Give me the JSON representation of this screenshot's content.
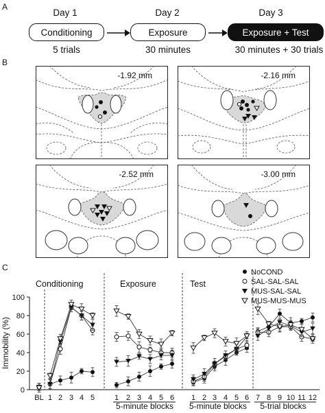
{
  "panel_a": {
    "letter": "A",
    "steps": [
      {
        "day": "Day 1",
        "label": "Conditioning",
        "detail": "5 trials"
      },
      {
        "day": "Day 2",
        "label": "Exposure",
        "detail": "30 minutes"
      },
      {
        "day": "Day 3",
        "label": "Exposure + Test",
        "detail": "30 minutes + 30 trials"
      }
    ]
  },
  "panel_b": {
    "letter": "B",
    "sections": [
      {
        "label": "-1.92 mm",
        "dots": 3,
        "open_dots": 1,
        "triangles": 0,
        "open_triangles": 0
      },
      {
        "label": "-2.16 mm",
        "dots": 5,
        "open_dots": 1,
        "triangles": 3,
        "open_triangles": 1
      },
      {
        "label": "-2.52 mm",
        "dots": 0,
        "open_dots": 0,
        "triangles": 6,
        "open_triangles": 2
      },
      {
        "label": "-3.00 mm",
        "dots": 1,
        "open_dots": 0,
        "triangles": 1,
        "open_triangles": 0
      }
    ]
  },
  "chart_data": {
    "type": "line",
    "panel_letter": "C",
    "ylabel": "Immobility (%)",
    "ylim": [
      0,
      100
    ],
    "yticks": [
      "0",
      "20",
      "40",
      "60",
      "80",
      "100"
    ],
    "sections": [
      {
        "title": "Conditioning",
        "xlabel": "",
        "x": [
          "BL",
          "1",
          "2",
          "3",
          "4",
          "5"
        ]
      },
      {
        "title": "Exposure",
        "xlabel": "5-minute blocks",
        "x": [
          "1",
          "2",
          "3",
          "4",
          "5",
          "6"
        ]
      },
      {
        "title": "Test",
        "xlabel": "5-minute blocks",
        "x": [
          "1",
          "2",
          "3",
          "4",
          "5",
          "6"
        ]
      },
      {
        "title": "",
        "xlabel": "5-trial blocks",
        "x": [
          "7",
          "8",
          "9",
          "10",
          "11",
          "12"
        ]
      }
    ],
    "legend": {
      "placement": "top-right"
    },
    "series": [
      {
        "name": "NoCOND",
        "marker": "filled-circle",
        "sections": [
          [
            3,
            6,
            10,
            13,
            20,
            19
          ],
          [
            5,
            9,
            14,
            20,
            25,
            28
          ],
          [
            8,
            12,
            25,
            32,
            40,
            45
          ],
          [
            63,
            68,
            82,
            72,
            74,
            78
          ]
        ]
      },
      {
        "name": "SAL-SAL-SAL",
        "marker": "open-circle",
        "sections": [
          [
            3,
            6,
            44,
            89,
            80,
            64
          ],
          [
            57,
            58,
            46,
            43,
            40,
            40
          ],
          [
            9,
            14,
            28,
            36,
            44,
            48
          ],
          [
            62,
            62,
            68,
            68,
            57,
            55
          ]
        ]
      },
      {
        "name": "MUS-SAL-SAL",
        "marker": "filled-triangle",
        "sections": [
          [
            3,
            6,
            52,
            89,
            80,
            70
          ],
          [
            30,
            31,
            36,
            33,
            37,
            37
          ],
          [
            11,
            17,
            28,
            37,
            44,
            57
          ],
          [
            58,
            66,
            73,
            69,
            62,
            66
          ]
        ]
      },
      {
        "name": "MUS-MUS-MUS",
        "marker": "open-triangle",
        "sections": [
          [
            2,
            15,
            55,
            92,
            87,
            80
          ],
          [
            85,
            79,
            60,
            53,
            49,
            61
          ],
          [
            45,
            56,
            61,
            52,
            50,
            58
          ],
          [
            87,
            71,
            68,
            70,
            65,
            55
          ]
        ]
      }
    ]
  }
}
